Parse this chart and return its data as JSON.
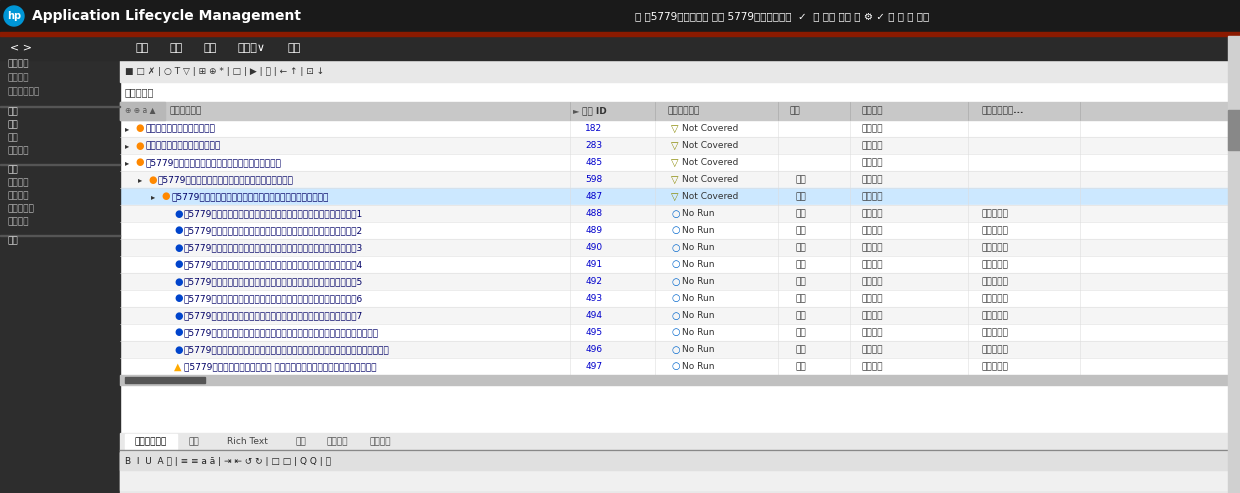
{
  "title": "Application Lifecycle Management",
  "top_bar_bg": "#1a1a1a",
  "top_bar_text_color": "#ffffff",
  "hp_logo_color": "#0096d6",
  "domain_text": "域 雷5779报文接口， 项目 5779报文接口测试  ✓  ｜ 用户 刘宇 ｜ ⚙ ✓ ｜ ❓ ｜ 注销",
  "menu_items": [
    "需求",
    "编辑",
    "视图",
    "收藏夹∨",
    "分析"
  ],
  "rows": [
    {
      "level": 1,
      "icon": "folder_orange",
      "text": "通用报文接口需求及测试需求",
      "id": "182",
      "status": "Not Covered",
      "priority": "",
      "type": "功能测试",
      "normal_abnormal": "",
      "has_arrow": true
    },
    {
      "level": 1,
      "icon": "folder_orange",
      "text": "通用报文交分界需求及测试需求",
      "id": "283",
      "status": "Not Covered",
      "priority": "",
      "type": "边界测试",
      "normal_abnormal": "",
      "has_arrow": true
    },
    {
      "level": 1,
      "icon": "folder_orange",
      "text": "雷5779报文控制与状态链路报文接口需求及测试需求",
      "id": "485",
      "status": "Not Covered",
      "priority": "",
      "type": "功能测试",
      "normal_abnormal": "",
      "has_arrow": true
    },
    {
      "level": 2,
      "icon": "folder_orange",
      "text": "雷5779报文控制与状态隗格式，信息元型据描述需求",
      "id": "598",
      "status": "Not Covered",
      "priority": "对应",
      "type": "功能测试",
      "normal_abnormal": "",
      "has_arrow": true
    },
    {
      "level": 3,
      "icon": "folder_orange",
      "text": "雷5779报文控制与状态隗格式，信息元型据描述功能验证测试",
      "id": "487",
      "status": "Not Covered",
      "priority": "对应",
      "type": "功能测试",
      "normal_abnormal": "",
      "has_arrow": true
    },
    {
      "level": 4,
      "icon": "circle_blue",
      "text": "雷5779报文控制与状态隗格式，信息元型据描述功能验证测试，典型1",
      "id": "488",
      "status": "No Run",
      "priority": "对应",
      "type": "功能测试",
      "normal_abnormal": "正常异常例",
      "has_arrow": false
    },
    {
      "level": 4,
      "icon": "circle_blue",
      "text": "雷5779报文控制与状态隗格式，信息元型据描述功能验证测试，典型2",
      "id": "489",
      "status": "No Run",
      "priority": "对应",
      "type": "功能测试",
      "normal_abnormal": "正常异常例",
      "has_arrow": false
    },
    {
      "level": 4,
      "icon": "circle_blue",
      "text": "雷5779报文控制与状态隗格式，信息元型据描述功能验证测试，典型3",
      "id": "490",
      "status": "No Run",
      "priority": "对应",
      "type": "功能测试",
      "normal_abnormal": "正常异常例",
      "has_arrow": false
    },
    {
      "level": 4,
      "icon": "circle_blue",
      "text": "雷5779报文控制与状态隗格式，信息元型据描述功能验证测试，典型4",
      "id": "491",
      "status": "No Run",
      "priority": "对应",
      "type": "功能测试",
      "normal_abnormal": "正常异常例",
      "has_arrow": false
    },
    {
      "level": 4,
      "icon": "circle_blue",
      "text": "雷5779报文控制与状态隗格式，信息元型据描述功能验证测试，典型5",
      "id": "492",
      "status": "No Run",
      "priority": "对应",
      "type": "功能测试",
      "normal_abnormal": "正常异常例",
      "has_arrow": false
    },
    {
      "level": 4,
      "icon": "circle_blue",
      "text": "雷5779报文控制与状态隗格式，信息元型据描述功能验证测试，典型6",
      "id": "493",
      "status": "No Run",
      "priority": "对应",
      "type": "功能测试",
      "normal_abnormal": "正常异常例",
      "has_arrow": false
    },
    {
      "level": 4,
      "icon": "circle_blue",
      "text": "雷5779报文控制与状态隗格式，信息元型据描述功能验证测试，典型7",
      "id": "494",
      "status": "No Run",
      "priority": "对应",
      "type": "功能测试",
      "normal_abnormal": "正常异常例",
      "has_arrow": false
    },
    {
      "level": 4,
      "icon": "circle_blue",
      "text": "雷5779报文控制与状态隗格式，信息元型据描述功能验证测试，正常边界下界",
      "id": "495",
      "status": "No Run",
      "priority": "对应",
      "type": "功能测试",
      "normal_abnormal": "异常异常例",
      "has_arrow": false
    },
    {
      "level": 4,
      "icon": "circle_blue",
      "text": "雷5779报文控制与状态隗格式，信息元型据描述功能验证测试，信息元型据异常倒叙",
      "id": "496",
      "status": "No Run",
      "priority": "对应",
      "type": "功能测试",
      "normal_abnormal": "异常异常例",
      "has_arrow": false
    },
    {
      "level": 4,
      "icon": "circle_yellow",
      "text": "雷5779报文控制与状态隗格式， 信息元型据描述功能验证测试，外边界判断",
      "id": "497",
      "status": "No Run",
      "priority": "对应",
      "type": "功能测试",
      "normal_abnormal": "异常异常例",
      "has_arrow": false
    }
  ],
  "bottom_tabs": [
    "需求详细描述",
    "注释",
    "Rich Text",
    "附件",
    "历史记录",
    "测试方法"
  ],
  "sidebar_top": [
    [
      "控制面板",
      "#cccccc"
    ],
    [
      "分析视图",
      "#aaaaaa"
    ],
    [
      "控制面板视图",
      "#aaaaaa"
    ]
  ],
  "sidebar_mgmt": [
    [
      "管理",
      "#dddddd"
    ],
    [
      "需求",
      "#dddddd"
    ],
    [
      "需求",
      "#bbbbbb"
    ],
    [
      "业务模型",
      "#bbbbbb"
    ]
  ],
  "sidebar_test_items": [
    [
      "测试",
      "#dddddd"
    ],
    [
      "测试资源",
      "#bbbbbb"
    ],
    [
      "测试计划",
      "#bbbbbb"
    ],
    [
      "测试实验室",
      "#bbbbbb"
    ],
    [
      "测试运行",
      "#bbbbbb"
    ]
  ],
  "col_headers": [
    "软件需求名称",
    "需求 ID",
    "测试覆盖状态",
    "优先",
    "测试类型",
    "正常异常测试..."
  ],
  "level_indent": {
    "1": 5,
    "2": 18,
    "3": 31,
    "4": 44
  }
}
